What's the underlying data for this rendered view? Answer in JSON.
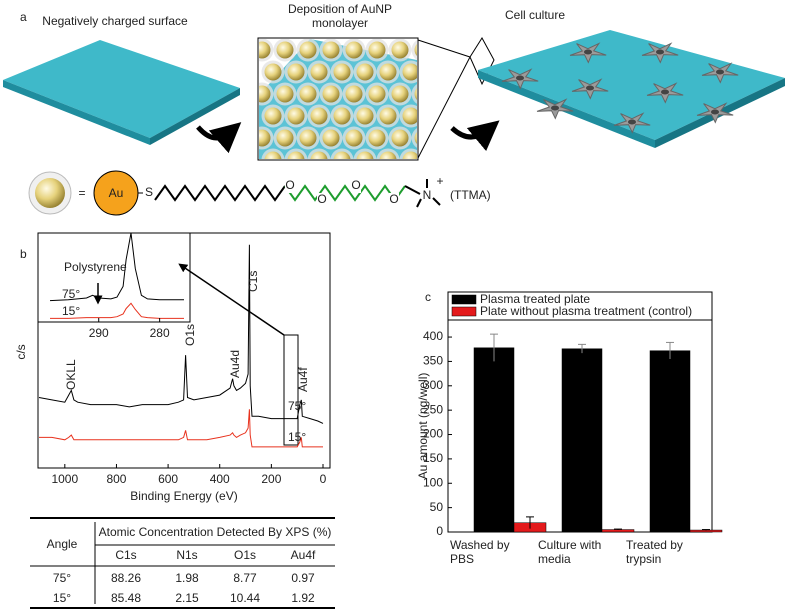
{
  "panel_labels": [
    "a",
    "b",
    "c"
  ],
  "schematic": {
    "steps": [
      "Negatively charged surface",
      "Deposition of AuNP monolayer",
      "Cell culture"
    ],
    "molecule": {
      "equals": "=",
      "core": "Au",
      "anchor": "S",
      "oxygens": [
        "O",
        "O",
        "O",
        "O"
      ],
      "nitrogen": "N",
      "charge": "+",
      "name": "(TTMA)"
    }
  },
  "chart_data": [
    {
      "type": "line",
      "xlabel": "Binding Energy (eV)",
      "ylabel": "c/s",
      "x": [
        1100,
        1050,
        1000,
        985,
        975,
        965,
        950,
        900,
        850,
        800,
        750,
        700,
        650,
        600,
        560,
        540,
        532,
        525,
        500,
        450,
        400,
        360,
        350,
        345,
        335,
        320,
        300,
        290,
        285,
        282,
        275,
        250,
        200,
        150,
        100,
        90,
        84,
        80,
        50,
        20,
        0
      ],
      "series": [
        {
          "name": "75°",
          "color": "#000000",
          "values": [
            30,
            29,
            28,
            31,
            33,
            29,
            28,
            27,
            27,
            27,
            26,
            27,
            27,
            27,
            28,
            29,
            48,
            30,
            29,
            30,
            31,
            34,
            38,
            35,
            33,
            34,
            36,
            40,
            95,
            35,
            22,
            22,
            21,
            21,
            21,
            27,
            29,
            22,
            21,
            20,
            19
          ]
        },
        {
          "name": "15°",
          "color": "#e8321e",
          "values": [
            13,
            13,
            12,
            13,
            14,
            12,
            12,
            12,
            12,
            12,
            12,
            12,
            12,
            12,
            12,
            13,
            16,
            12,
            12,
            12,
            13,
            14,
            15,
            14,
            13,
            14,
            15,
            17,
            25,
            14,
            9,
            9,
            9,
            9,
            9,
            11,
            13,
            9,
            9,
            9,
            9
          ]
        }
      ],
      "xlim": [
        1100,
        0
      ],
      "ylim": [
        0,
        100
      ],
      "xticks": [
        1000,
        800,
        600,
        400,
        200,
        0
      ],
      "peak_labels": [
        "OKLL",
        "O1s",
        "Au4d",
        "C1s",
        "Au4f"
      ]
    },
    {
      "type": "line",
      "annotation": "Polystyrene",
      "x": [
        298,
        295,
        292,
        291,
        290,
        288,
        287,
        286,
        285.5,
        284.7,
        284,
        283,
        282,
        280,
        278,
        276
      ],
      "series": [
        {
          "name": "75°",
          "color": "#000000",
          "values": [
            24,
            25,
            27,
            30,
            27,
            26,
            28,
            40,
            70,
            100,
            60,
            30,
            26,
            25,
            25,
            25
          ]
        },
        {
          "name": "15°",
          "color": "#e8321e",
          "values": [
            4,
            4,
            5,
            5,
            5,
            5,
            6,
            9,
            15,
            21,
            14,
            6,
            5,
            4,
            4,
            4
          ]
        }
      ],
      "xlim": [
        298,
        276
      ],
      "ylim": [
        0,
        100
      ],
      "xticks": [
        290,
        280
      ]
    },
    {
      "type": "bar",
      "ylabel": "Au amount (ng/well)",
      "categories": [
        "Washed by PBS",
        "Culture with media",
        "Treated by trypsin"
      ],
      "series": [
        {
          "name": "Plasma treated plate",
          "color": "#000000",
          "values": [
            378,
            376,
            372
          ],
          "errors": [
            28,
            9,
            17
          ]
        },
        {
          "name": "Plate without plasma treatment (control)",
          "color": "#e41a1c",
          "values": [
            19,
            5,
            4
          ],
          "errors": [
            12,
            1,
            1
          ]
        }
      ],
      "ylim": [
        0,
        435
      ],
      "yticks": [
        0,
        50,
        100,
        150,
        200,
        250,
        300,
        350,
        400
      ],
      "legend": "top"
    }
  ],
  "table": {
    "row_header": "Angle",
    "group_header": "Atomic Concentration Detected By XPS (%)",
    "columns": [
      "C1s",
      "N1s",
      "O1s",
      "Au4f"
    ],
    "rows": [
      [
        "75°",
        88.26,
        1.98,
        8.77,
        0.97
      ],
      [
        "15°",
        85.48,
        2.15,
        10.44,
        1.92
      ]
    ]
  }
}
